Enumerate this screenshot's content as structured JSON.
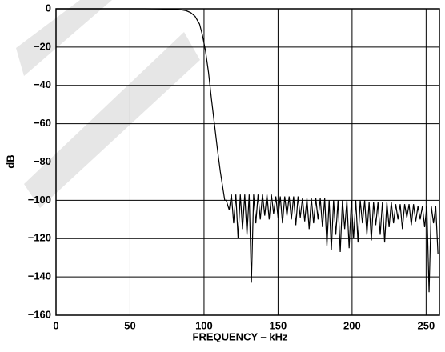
{
  "chart_data": {
    "type": "line",
    "x_label": "FREQUENCY – kHz",
    "y_label": "dB",
    "x": [
      0,
      20,
      40,
      60,
      70,
      80,
      85,
      88,
      91,
      94,
      97,
      99,
      101,
      103,
      105,
      107,
      109,
      111,
      113,
      114,
      115,
      117,
      118.5,
      120,
      121.5,
      123,
      124.5,
      126,
      127.5,
      129,
      130.5,
      132,
      133.5,
      135,
      136.5,
      138,
      139.5,
      141,
      142.5,
      144,
      145.5,
      147,
      148.5,
      150,
      151.5,
      153,
      154.5,
      156,
      157.5,
      159,
      160.5,
      162,
      163.5,
      165,
      166.5,
      168,
      169.5,
      171,
      172.5,
      174,
      175.5,
      177,
      178.5,
      180,
      181.5,
      183,
      184.5,
      186,
      187.5,
      189,
      190.5,
      192,
      193.5,
      195,
      196.5,
      198,
      199.5,
      201,
      202.5,
      204,
      205.5,
      207,
      208.5,
      210,
      211.5,
      213,
      214.5,
      216,
      217.5,
      219,
      220.5,
      222,
      223.5,
      225,
      226.5,
      228,
      229.5,
      231,
      232.5,
      234,
      235.5,
      237,
      238.5,
      240,
      241.5,
      243,
      244.5,
      246,
      247.5,
      249,
      250.5,
      252,
      253.5,
      255,
      256.5,
      258
    ],
    "series": [
      {
        "color": "#000000",
        "values": [
          0,
          0,
          0,
          0,
          -0.1,
          -0.3,
          -0.6,
          -1,
          -2,
          -4,
          -8,
          -14,
          -22,
          -33,
          -47,
          -60,
          -73,
          -85,
          -95,
          -100,
          -100,
          -105,
          -97,
          -112,
          -97,
          -120,
          -97,
          -115,
          -97,
          -118,
          -97,
          -143,
          -97,
          -112,
          -97,
          -110,
          -97,
          -108,
          -97,
          -110,
          -97,
          -107,
          -98,
          -109,
          -98,
          -112,
          -98,
          -108,
          -98,
          -110,
          -98,
          -113,
          -98,
          -109,
          -99,
          -111,
          -99,
          -115,
          -99,
          -112,
          -99,
          -110,
          -99,
          -114,
          -99,
          -124,
          -100,
          -126,
          -100,
          -118,
          -100,
          -127,
          -100,
          -115,
          -100,
          -125,
          -100,
          -120,
          -100,
          -122,
          -100,
          -112,
          -100,
          -118,
          -101,
          -121,
          -101,
          -113,
          -101,
          -118,
          -101,
          -122,
          -101,
          -114,
          -101,
          -112,
          -102,
          -110,
          -102,
          -115,
          -102,
          -109,
          -102,
          -113,
          -102,
          -111,
          -103,
          -110,
          -103,
          -114,
          -103,
          -148,
          -103,
          -112,
          -103,
          -128
        ]
      }
    ],
    "xlim": [
      0,
      259
    ],
    "ylim": [
      -160,
      0
    ],
    "xticks": [
      0,
      50,
      100,
      150,
      200,
      250
    ],
    "yticks": [
      0,
      {
        "value": -20,
        "label": "−20"
      },
      {
        "value": -40,
        "label": "−40"
      },
      {
        "value": -60,
        "label": "−60"
      },
      {
        "value": -80,
        "label": "−80"
      },
      {
        "value": -100,
        "label": "−100"
      },
      {
        "value": -120,
        "label": "−120"
      },
      {
        "value": -140,
        "label": "−140"
      },
      {
        "value": -160,
        "label": "−160"
      }
    ],
    "grid": true
  }
}
